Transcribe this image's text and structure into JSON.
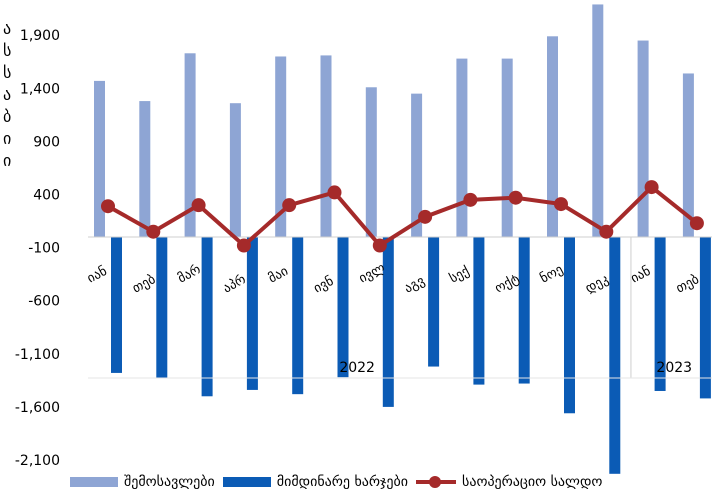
{
  "chart_data": {
    "type": "bar",
    "title": "",
    "xlabel": "",
    "ylabel": "",
    "ylim": [
      -2100,
      2100
    ],
    "yticks": [
      1900,
      1400,
      900,
      400,
      -100,
      -600,
      -1100,
      -1600,
      -2100
    ],
    "ytick_labels": [
      "1,900",
      "1,400",
      "900",
      "400",
      "-100",
      "-600",
      "-1,100",
      "-1,600",
      "-2,100"
    ],
    "categories": [
      "იან",
      "თებ",
      "მარ",
      "აპრ",
      "მაი",
      "ივნ",
      "ივლ",
      "აგვ",
      "სექ",
      "ოქტ",
      "ნოე",
      "დეკ",
      "იან",
      "თებ"
    ],
    "years": [
      {
        "label": "2022",
        "from": 0,
        "to": 11
      },
      {
        "label": "2023",
        "from": 12,
        "to": 13
      }
    ],
    "series": [
      {
        "name": "შემოსავლები",
        "type": "bar",
        "color": "#8ea5d4",
        "values": [
          1470,
          1280,
          1730,
          1260,
          1700,
          1710,
          1410,
          1350,
          1680,
          1680,
          1890,
          2190,
          1850,
          1540
        ]
      },
      {
        "name": "მიმდინარე ხარჯები",
        "type": "bar",
        "color": "#0b5bb5",
        "values": [
          -1280,
          -1330,
          -1500,
          -1440,
          -1480,
          -1320,
          -1600,
          -1220,
          -1390,
          -1380,
          -1660,
          -2230,
          -1450,
          -1520
        ]
      },
      {
        "name": "საოპერაციო სალდო",
        "type": "line",
        "color": "#a52a2a",
        "values": [
          290,
          50,
          300,
          -80,
          300,
          420,
          -80,
          190,
          350,
          370,
          310,
          50,
          470,
          130
        ]
      }
    ],
    "legend": "bottom",
    "grid": false,
    "axis_title_chars": [
      "ა",
      "ს",
      "ს",
      "ა",
      "ბ",
      "ი",
      "ი"
    ]
  }
}
